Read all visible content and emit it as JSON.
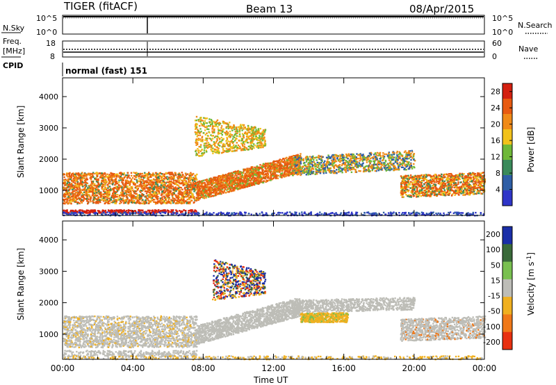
{
  "header": {
    "radar": "TIGER (fitACF)",
    "beam": "Beam 13",
    "date": "08/Apr/2015"
  },
  "strips": {
    "sky": {
      "left_label": "N.Sky",
      "right_label": "N.Search",
      "left_ticks": [
        "10^5",
        "10^0"
      ],
      "right_ticks": [
        "10^5",
        "10^0"
      ]
    },
    "freq": {
      "left_label_1": "Freq.",
      "left_label_2": "[MHz]",
      "right_label": "Nave",
      "left_ticks": [
        "18",
        "8"
      ],
      "right_ticks": [
        "60",
        "0"
      ]
    },
    "cpid": {
      "left_label": "CPID",
      "text": "normal (fast) 151"
    }
  },
  "colors": {
    "power": [
      "#2f35c8",
      "#2e5ea6",
      "#3a8a5a",
      "#6fb838",
      "#f2c21b",
      "#f08a17",
      "#e85a10",
      "#d42010"
    ],
    "velocity": [
      "#1a2ea8",
      "#3a6a3a",
      "#79c050",
      "#bdbdb7",
      "#f0b020",
      "#f07818",
      "#e83010"
    ]
  },
  "chart_data": [
    {
      "type": "heatmap",
      "title": "Power",
      "ylabel": "Slant Range [km]",
      "ylim": [
        200,
        4600
      ],
      "x_ticks": [
        "00:00",
        "04:00",
        "08:00",
        "12:00",
        "16:00",
        "20:00",
        "00:00"
      ],
      "y_ticks": [
        1000,
        2000,
        3000,
        4000
      ],
      "colorbar_label": "Power [dB]",
      "colorbar_ticks": [
        4,
        8,
        12,
        16,
        20,
        24,
        28
      ],
      "range": [
        0,
        30
      ]
    },
    {
      "type": "heatmap",
      "title": "Velocity",
      "ylabel": "Slant Range [km]",
      "xlabel": "Time UT",
      "ylim": [
        200,
        4600
      ],
      "x_ticks": [
        "00:00",
        "04:00",
        "08:00",
        "12:00",
        "16:00",
        "20:00",
        "00:00"
      ],
      "y_ticks": [
        1000,
        2000,
        3000,
        4000
      ],
      "colorbar_label": "Velocity [m s^-1]",
      "colorbar_ticks": [
        "200",
        "100",
        "50",
        "15",
        "-15",
        "-50",
        "-100",
        "-200"
      ]
    }
  ]
}
